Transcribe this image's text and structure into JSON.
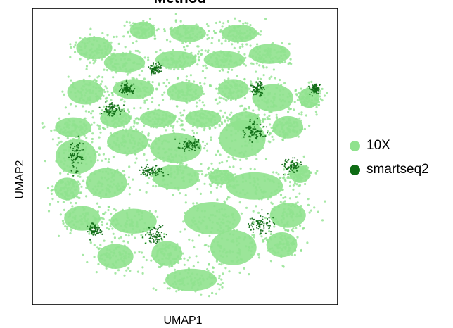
{
  "chart_data": {
    "type": "scatter",
    "title": "Method",
    "xlabel": "UMAP1",
    "ylabel": "UMAP2",
    "xticks": [],
    "yticks": [],
    "grid": false,
    "legend_placement": "right",
    "series": [
      {
        "name": "10X",
        "color": "#90e28e"
      },
      {
        "name": "smartseq2",
        "color": "#0e6b14"
      }
    ],
    "clusters": [
      {
        "series": "10X",
        "x": 0.2,
        "y": 0.87,
        "rx": 0.07,
        "ry": 0.045
      },
      {
        "series": "10X",
        "x": 0.36,
        "y": 0.93,
        "rx": 0.05,
        "ry": 0.035
      },
      {
        "series": "10X",
        "x": 0.51,
        "y": 0.92,
        "rx": 0.07,
        "ry": 0.035
      },
      {
        "series": "10X",
        "x": 0.68,
        "y": 0.92,
        "rx": 0.07,
        "ry": 0.035
      },
      {
        "series": "10X",
        "x": 0.78,
        "y": 0.85,
        "rx": 0.08,
        "ry": 0.04
      },
      {
        "series": "10X",
        "x": 0.3,
        "y": 0.82,
        "rx": 0.08,
        "ry": 0.04
      },
      {
        "series": "10X",
        "x": 0.47,
        "y": 0.83,
        "rx": 0.08,
        "ry": 0.035
      },
      {
        "series": "10X",
        "x": 0.63,
        "y": 0.83,
        "rx": 0.08,
        "ry": 0.035
      },
      {
        "series": "10X",
        "x": 0.17,
        "y": 0.72,
        "rx": 0.07,
        "ry": 0.05
      },
      {
        "series": "10X",
        "x": 0.33,
        "y": 0.73,
        "rx": 0.08,
        "ry": 0.04
      },
      {
        "series": "10X",
        "x": 0.5,
        "y": 0.72,
        "rx": 0.07,
        "ry": 0.04
      },
      {
        "series": "10X",
        "x": 0.66,
        "y": 0.73,
        "rx": 0.06,
        "ry": 0.04
      },
      {
        "series": "10X",
        "x": 0.79,
        "y": 0.7,
        "rx": 0.08,
        "ry": 0.055
      },
      {
        "series": "10X",
        "x": 0.91,
        "y": 0.7,
        "rx": 0.04,
        "ry": 0.04
      },
      {
        "series": "10X",
        "x": 0.13,
        "y": 0.6,
        "rx": 0.07,
        "ry": 0.04
      },
      {
        "series": "10X",
        "x": 0.27,
        "y": 0.63,
        "rx": 0.06,
        "ry": 0.035
      },
      {
        "series": "10X",
        "x": 0.41,
        "y": 0.63,
        "rx": 0.07,
        "ry": 0.035
      },
      {
        "series": "10X",
        "x": 0.56,
        "y": 0.63,
        "rx": 0.07,
        "ry": 0.035
      },
      {
        "series": "10X",
        "x": 0.7,
        "y": 0.62,
        "rx": 0.06,
        "ry": 0.04
      },
      {
        "series": "10X",
        "x": 0.84,
        "y": 0.6,
        "rx": 0.06,
        "ry": 0.045
      },
      {
        "series": "10X",
        "x": 0.14,
        "y": 0.5,
        "rx": 0.08,
        "ry": 0.07
      },
      {
        "series": "10X",
        "x": 0.31,
        "y": 0.55,
        "rx": 0.08,
        "ry": 0.05
      },
      {
        "series": "10X",
        "x": 0.47,
        "y": 0.53,
        "rx": 0.1,
        "ry": 0.06
      },
      {
        "series": "10X",
        "x": 0.69,
        "y": 0.56,
        "rx": 0.09,
        "ry": 0.075
      },
      {
        "series": "10X",
        "x": 0.24,
        "y": 0.41,
        "rx": 0.08,
        "ry": 0.06
      },
      {
        "series": "10X",
        "x": 0.11,
        "y": 0.39,
        "rx": 0.05,
        "ry": 0.045
      },
      {
        "series": "10X",
        "x": 0.47,
        "y": 0.43,
        "rx": 0.09,
        "ry": 0.05
      },
      {
        "series": "10X",
        "x": 0.62,
        "y": 0.43,
        "rx": 0.05,
        "ry": 0.03
      },
      {
        "series": "10X",
        "x": 0.73,
        "y": 0.4,
        "rx": 0.11,
        "ry": 0.055
      },
      {
        "series": "10X",
        "x": 0.88,
        "y": 0.44,
        "rx": 0.04,
        "ry": 0.035
      },
      {
        "series": "10X",
        "x": 0.16,
        "y": 0.29,
        "rx": 0.07,
        "ry": 0.05
      },
      {
        "series": "10X",
        "x": 0.33,
        "y": 0.28,
        "rx": 0.09,
        "ry": 0.05
      },
      {
        "series": "10X",
        "x": 0.59,
        "y": 0.29,
        "rx": 0.11,
        "ry": 0.065
      },
      {
        "series": "10X",
        "x": 0.84,
        "y": 0.3,
        "rx": 0.07,
        "ry": 0.05
      },
      {
        "series": "10X",
        "x": 0.27,
        "y": 0.16,
        "rx": 0.07,
        "ry": 0.05
      },
      {
        "series": "10X",
        "x": 0.44,
        "y": 0.17,
        "rx": 0.06,
        "ry": 0.05
      },
      {
        "series": "10X",
        "x": 0.66,
        "y": 0.19,
        "rx": 0.09,
        "ry": 0.07
      },
      {
        "series": "10X",
        "x": 0.82,
        "y": 0.2,
        "rx": 0.06,
        "ry": 0.05
      },
      {
        "series": "10X",
        "x": 0.52,
        "y": 0.08,
        "rx": 0.1,
        "ry": 0.045
      },
      {
        "series": "smartseq2",
        "x": 0.73,
        "y": 0.59,
        "rx": 0.03,
        "ry": 0.03
      },
      {
        "series": "smartseq2",
        "x": 0.74,
        "y": 0.73,
        "rx": 0.02,
        "ry": 0.02
      },
      {
        "series": "smartseq2",
        "x": 0.26,
        "y": 0.66,
        "rx": 0.03,
        "ry": 0.02
      },
      {
        "series": "smartseq2",
        "x": 0.39,
        "y": 0.45,
        "rx": 0.04,
        "ry": 0.015
      },
      {
        "series": "smartseq2",
        "x": 0.14,
        "y": 0.5,
        "rx": 0.02,
        "ry": 0.05
      },
      {
        "series": "smartseq2",
        "x": 0.75,
        "y": 0.27,
        "rx": 0.04,
        "ry": 0.03
      },
      {
        "series": "smartseq2",
        "x": 0.4,
        "y": 0.23,
        "rx": 0.03,
        "ry": 0.03
      },
      {
        "series": "smartseq2",
        "x": 0.2,
        "y": 0.25,
        "rx": 0.02,
        "ry": 0.02
      },
      {
        "series": "smartseq2",
        "x": 0.85,
        "y": 0.47,
        "rx": 0.03,
        "ry": 0.02
      },
      {
        "series": "smartseq2",
        "x": 0.4,
        "y": 0.8,
        "rx": 0.02,
        "ry": 0.015
      },
      {
        "series": "smartseq2",
        "x": 0.31,
        "y": 0.73,
        "rx": 0.02,
        "ry": 0.015
      },
      {
        "series": "smartseq2",
        "x": 0.52,
        "y": 0.54,
        "rx": 0.04,
        "ry": 0.02
      },
      {
        "series": "smartseq2",
        "x": 0.93,
        "y": 0.73,
        "rx": 0.015,
        "ry": 0.015
      }
    ]
  }
}
